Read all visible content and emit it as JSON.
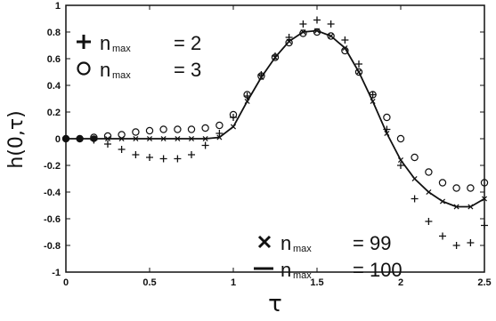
{
  "chart_data": {
    "type": "line",
    "title": "",
    "xlabel": "τ",
    "ylabel": "h(0,τ)",
    "xlim": [
      0,
      2.5
    ],
    "ylim": [
      -1,
      1
    ],
    "xticks": [
      "0",
      "0.5",
      "1",
      "1.5",
      "2",
      "2.5"
    ],
    "yticks": [
      "1",
      "0.8",
      "0.6",
      "0.4",
      "0.2",
      "0",
      "-0.2",
      "-0.4",
      "-0.6",
      "-0.8",
      "-1"
    ],
    "grid": false,
    "series": [
      {
        "name": "n_max = 2",
        "label_text": "= 2",
        "marker": "plus",
        "x": [
          0,
          0.083,
          0.167,
          0.25,
          0.333,
          0.417,
          0.5,
          0.583,
          0.667,
          0.75,
          0.833,
          0.917,
          1.0,
          1.083,
          1.167,
          1.25,
          1.333,
          1.417,
          1.5,
          1.583,
          1.667,
          1.75,
          1.833,
          1.917,
          2.0,
          2.083,
          2.167,
          2.25,
          2.333,
          2.417,
          2.5
        ],
        "y": [
          0,
          0,
          -0.01,
          -0.04,
          -0.08,
          -0.12,
          -0.14,
          -0.15,
          -0.15,
          -0.12,
          -0.05,
          0.04,
          0.16,
          0.32,
          0.48,
          0.62,
          0.76,
          0.86,
          0.89,
          0.86,
          0.74,
          0.56,
          0.33,
          0.07,
          -0.2,
          -0.45,
          -0.62,
          -0.73,
          -0.8,
          -0.78,
          -0.65
        ]
      },
      {
        "name": "n_max = 3",
        "label_text": "= 3",
        "marker": "circle",
        "x": [
          0,
          0.083,
          0.167,
          0.25,
          0.333,
          0.417,
          0.5,
          0.583,
          0.667,
          0.75,
          0.833,
          0.917,
          1.0,
          1.083,
          1.167,
          1.25,
          1.333,
          1.417,
          1.5,
          1.583,
          1.667,
          1.75,
          1.833,
          1.917,
          2.0,
          2.083,
          2.167,
          2.25,
          2.333,
          2.417,
          2.5
        ],
        "y": [
          0,
          0,
          0.01,
          0.02,
          0.03,
          0.05,
          0.06,
          0.07,
          0.07,
          0.07,
          0.08,
          0.1,
          0.18,
          0.33,
          0.47,
          0.61,
          0.72,
          0.79,
          0.8,
          0.77,
          0.66,
          0.5,
          0.33,
          0.16,
          0.0,
          -0.14,
          -0.25,
          -0.33,
          -0.37,
          -0.37,
          -0.33
        ]
      },
      {
        "name": "n_max = 99",
        "label_text": "= 99",
        "marker": "cross",
        "x": [
          0,
          0.083,
          0.167,
          0.25,
          0.333,
          0.417,
          0.5,
          0.583,
          0.667,
          0.75,
          0.833,
          0.917,
          1.0,
          1.083,
          1.167,
          1.25,
          1.333,
          1.417,
          1.5,
          1.583,
          1.667,
          1.75,
          1.833,
          1.917,
          2.0,
          2.083,
          2.167,
          2.25,
          2.333,
          2.417,
          2.5
        ],
        "y": [
          0,
          0,
          0,
          0,
          0,
          0,
          0,
          0,
          0,
          0,
          0,
          0.01,
          0.09,
          0.28,
          0.46,
          0.61,
          0.73,
          0.8,
          0.81,
          0.77,
          0.68,
          0.5,
          0.28,
          0.04,
          -0.16,
          -0.3,
          -0.4,
          -0.47,
          -0.51,
          -0.51,
          -0.45
        ]
      },
      {
        "name": "n_max = 100",
        "label_text": "= 100",
        "marker": "line",
        "x": [
          0,
          0.083,
          0.167,
          0.25,
          0.333,
          0.417,
          0.5,
          0.583,
          0.667,
          0.75,
          0.833,
          0.917,
          1.0,
          1.083,
          1.167,
          1.25,
          1.333,
          1.417,
          1.5,
          1.583,
          1.667,
          1.75,
          1.833,
          1.917,
          2.0,
          2.083,
          2.167,
          2.25,
          2.333,
          2.417,
          2.5
        ],
        "y": [
          0,
          0,
          0,
          0,
          0,
          0,
          0,
          0,
          0,
          0,
          0,
          0.01,
          0.09,
          0.28,
          0.46,
          0.61,
          0.73,
          0.8,
          0.81,
          0.77,
          0.68,
          0.5,
          0.28,
          0.04,
          -0.16,
          -0.3,
          -0.4,
          -0.47,
          -0.51,
          -0.51,
          -0.45
        ]
      }
    ],
    "legend": {
      "symbol_text": "n",
      "subscript_text": "max"
    },
    "solid_dots": {
      "x": [
        0,
        0.083,
        0.167
      ],
      "y": [
        0,
        0,
        0
      ]
    }
  }
}
